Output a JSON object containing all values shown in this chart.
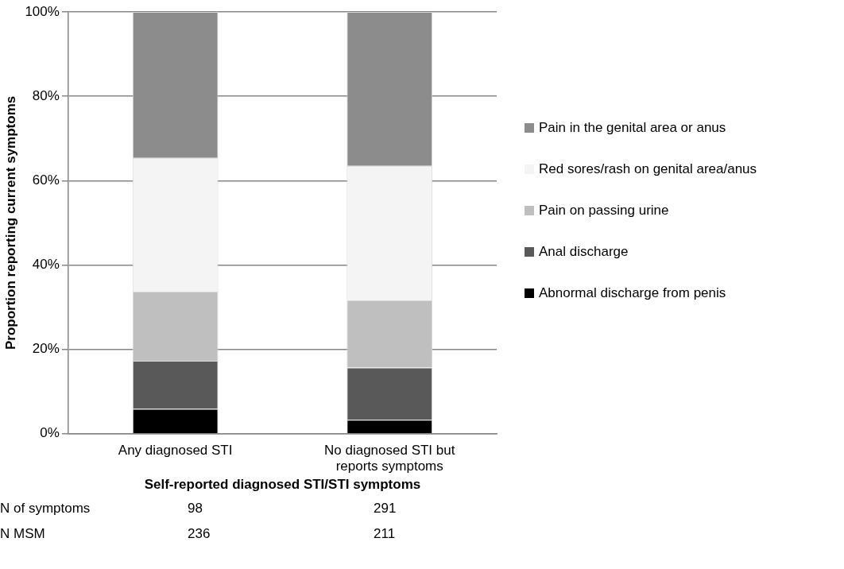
{
  "chart_data": {
    "type": "bar",
    "stacked": true,
    "categories": [
      "Any diagnosed STI",
      "No diagnosed STI but reports symptoms"
    ],
    "xlabel": "Self-reported diagnosed STI/STI symptoms",
    "ylabel": "Proportion reporting current symptoms",
    "series": [
      {
        "name": "Abnormal discharge from penis",
        "color": "#000000",
        "values": [
          5.9,
          3.3
        ]
      },
      {
        "name": "Anal discharge",
        "color": "#595959",
        "values": [
          11.4,
          12.4
        ]
      },
      {
        "name": "Pain on passing urine",
        "color": "#bfbfbf",
        "values": [
          16.4,
          15.9
        ]
      },
      {
        "name": "Red sores/rash on genital area/anus",
        "color": "#f4f4f4",
        "values": [
          31.7,
          31.9
        ]
      },
      {
        "name": "Pain in the genital area or anus",
        "color": "#8c8c8c",
        "values": [
          34.6,
          36.5
        ]
      }
    ],
    "ylim": [
      0,
      100
    ],
    "yticks": [
      {
        "value": 0,
        "label": "0%"
      },
      {
        "value": 20,
        "label": "20%"
      },
      {
        "value": 40,
        "label": "40%"
      },
      {
        "value": 60,
        "label": "60%"
      },
      {
        "value": 80,
        "label": "80%"
      },
      {
        "value": 100,
        "label": "100%"
      }
    ],
    "grid": "y",
    "legend": "right",
    "annotations": [
      "N of symptoms",
      "98",
      "291",
      "N MSM",
      "236",
      "211"
    ]
  }
}
